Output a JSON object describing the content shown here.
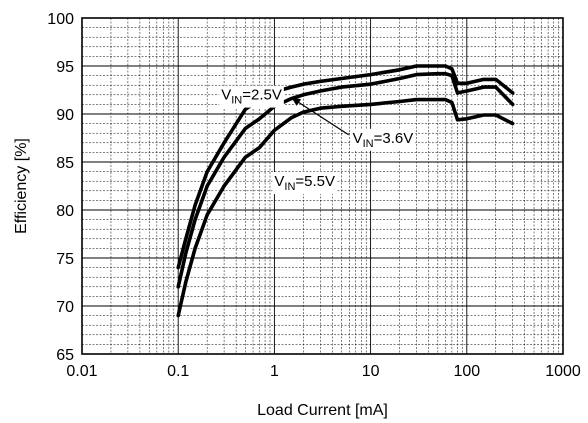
{
  "chart_data": {
    "type": "line",
    "title": "",
    "xlabel": "Load Current [mA]",
    "ylabel": "Efficiency [%]",
    "x_scale": "log",
    "xlim": [
      0.01,
      1000
    ],
    "ylim": [
      65,
      100
    ],
    "x_ticks": [
      0.01,
      0.1,
      1,
      10,
      100,
      1000
    ],
    "x_tick_labels": [
      "0.01",
      "0.1",
      "1",
      "10",
      "100",
      "1000"
    ],
    "y_ticks": [
      65,
      70,
      75,
      80,
      85,
      90,
      95,
      100
    ],
    "y_tick_labels": [
      "65",
      "70",
      "75",
      "80",
      "85",
      "90",
      "95",
      "100"
    ],
    "grid": true,
    "series": [
      {
        "name": "VIN=2.5V",
        "label_main": "V",
        "label_sub": "IN",
        "label_tail": "=2.5V",
        "x": [
          0.1,
          0.12,
          0.15,
          0.2,
          0.3,
          0.5,
          0.7,
          1,
          1.5,
          2,
          3,
          5,
          10,
          20,
          30,
          50,
          60,
          70,
          80,
          100,
          150,
          200,
          300
        ],
        "y": [
          74,
          77,
          80.5,
          84,
          87,
          90.5,
          91.5,
          92.3,
          92.8,
          93.1,
          93.4,
          93.7,
          94.1,
          94.6,
          95.0,
          95.0,
          95.0,
          94.7,
          93.2,
          93.2,
          93.6,
          93.6,
          92.2
        ]
      },
      {
        "name": "VIN=3.6V",
        "label_main": "V",
        "label_sub": "IN",
        "label_tail": "=3.6V",
        "x": [
          0.1,
          0.12,
          0.15,
          0.2,
          0.3,
          0.5,
          0.7,
          1,
          1.5,
          2,
          3,
          5,
          10,
          20,
          30,
          50,
          60,
          70,
          80,
          100,
          150,
          200,
          300
        ],
        "y": [
          72,
          75.5,
          79,
          82.5,
          85.5,
          88.5,
          89.5,
          90.8,
          91.6,
          92.0,
          92.4,
          92.8,
          93.1,
          93.7,
          94.1,
          94.2,
          94.2,
          94.0,
          92.2,
          92.4,
          92.8,
          92.8,
          91.0
        ]
      },
      {
        "name": "VIN=5.5V",
        "label_main": "V",
        "label_sub": "IN",
        "label_tail": "=5.5V",
        "x": [
          0.1,
          0.12,
          0.15,
          0.2,
          0.3,
          0.5,
          0.7,
          1,
          1.5,
          2,
          3,
          5,
          10,
          20,
          30,
          50,
          60,
          70,
          80,
          100,
          150,
          200,
          300
        ],
        "y": [
          69,
          72.5,
          76,
          79.5,
          82.5,
          85.5,
          86.5,
          88.3,
          89.6,
          90.2,
          90.6,
          90.8,
          91.0,
          91.3,
          91.5,
          91.5,
          91.5,
          91.2,
          89.4,
          89.5,
          89.9,
          89.9,
          89.0
        ]
      }
    ],
    "annotations": [
      {
        "series": 0,
        "text_main": "V",
        "text_sub": "IN",
        "text_tail": "=2.5V",
        "label_x": 0.28,
        "label_y": 91.5,
        "arrow": false
      },
      {
        "series": 1,
        "text_main": "V",
        "text_sub": "IN",
        "text_tail": "=3.6V",
        "label_x": 6.5,
        "label_y": 87.0,
        "arrow_to_x": 1.5,
        "arrow_to_y": 91.7,
        "arrow": true
      },
      {
        "series": 2,
        "text_main": "V",
        "text_sub": "IN",
        "text_tail": "=5.5V",
        "label_x": 1.0,
        "label_y": 82.5,
        "arrow": false
      }
    ]
  }
}
